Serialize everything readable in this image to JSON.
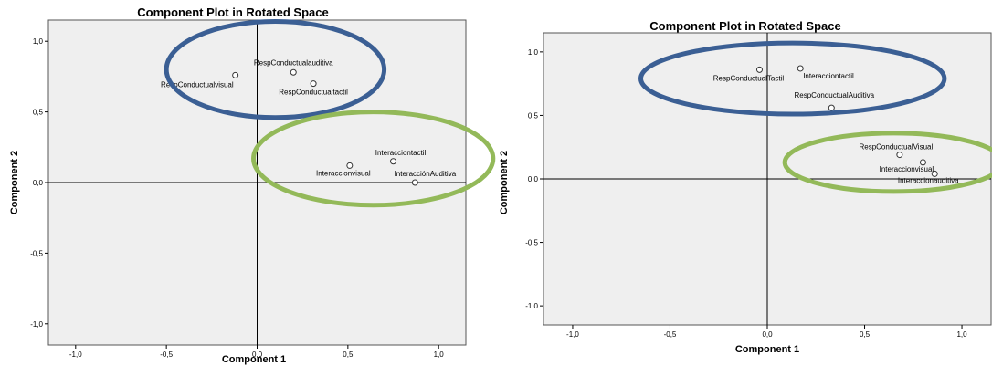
{
  "chart_data": [
    {
      "type": "scatter",
      "title": "Component Plot in Rotated Space",
      "xlabel": "Component 1",
      "ylabel": "Component 2",
      "xlim": [
        -1.15,
        1.15
      ],
      "ylim": [
        -1.15,
        1.15
      ],
      "xticks": [
        -1.0,
        -0.5,
        0.0,
        0.5,
        1.0
      ],
      "yticks": [
        -1.0,
        -0.5,
        0.0,
        0.5,
        1.0
      ],
      "xtick_labels": [
        "-1,0",
        "-0,5",
        "0,0",
        "0,5",
        "1,0"
      ],
      "ytick_labels": [
        "-1,0",
        "-0,5",
        "0,0",
        "0,5",
        "1,0"
      ],
      "points": [
        {
          "label": "RespConductualvisual",
          "x": -0.12,
          "y": 0.76
        },
        {
          "label": "RespConductualauditiva",
          "x": 0.2,
          "y": 0.78
        },
        {
          "label": "RespConductualtactil",
          "x": 0.31,
          "y": 0.7
        },
        {
          "label": "Interacciontactil",
          "x": 0.75,
          "y": 0.15
        },
        {
          "label": "Interaccionvisual",
          "x": 0.51,
          "y": 0.12
        },
        {
          "label": "InteracciónAuditiva",
          "x": 0.87,
          "y": 0.0
        }
      ],
      "annotations": [
        {
          "shape": "ellipse",
          "color": "#3b5f94",
          "cx": 0.1,
          "cy": 0.8,
          "rx": 0.6,
          "ry": 0.34
        },
        {
          "shape": "ellipse",
          "color": "#93b959",
          "cx": 0.64,
          "cy": 0.17,
          "rx": 0.66,
          "ry": 0.33
        }
      ]
    },
    {
      "type": "scatter",
      "title": "Component Plot in Rotated Space",
      "xlabel": "Component 1",
      "ylabel": "Component 2",
      "xlim": [
        -1.15,
        1.15
      ],
      "ylim": [
        -1.15,
        1.15
      ],
      "xticks": [
        -1.0,
        -0.5,
        0.0,
        0.5,
        1.0
      ],
      "yticks": [
        -1.0,
        -0.5,
        0.0,
        0.5,
        1.0
      ],
      "xtick_labels": [
        "-1,0",
        "-0,5",
        "0,0",
        "0,5",
        "1,0"
      ],
      "ytick_labels": [
        "-1,0",
        "-0,5",
        "0,0",
        "0,5",
        "1,0"
      ],
      "points": [
        {
          "label": "RespConductualTactil",
          "x": -0.04,
          "y": 0.86
        },
        {
          "label": "Interacciontactil",
          "x": 0.17,
          "y": 0.87
        },
        {
          "label": "RespConductualAuditiva",
          "x": 0.33,
          "y": 0.56
        },
        {
          "label": "RespConductualVisual",
          "x": 0.68,
          "y": 0.19
        },
        {
          "label": "Interaccionvisual",
          "x": 0.8,
          "y": 0.13
        },
        {
          "label": "Interaccionauditiva",
          "x": 0.86,
          "y": 0.04
        }
      ],
      "annotations": [
        {
          "shape": "ellipse",
          "color": "#3b5f94",
          "cx": 0.13,
          "cy": 0.79,
          "rx": 0.78,
          "ry": 0.28
        },
        {
          "shape": "ellipse",
          "color": "#93b959",
          "cx": 0.65,
          "cy": 0.13,
          "rx": 0.56,
          "ry": 0.23
        }
      ]
    }
  ],
  "colors": {
    "plot_background": "#efefef",
    "frame": "#555555",
    "cluster_blue": "#3b5f94",
    "cluster_green": "#93b959"
  }
}
